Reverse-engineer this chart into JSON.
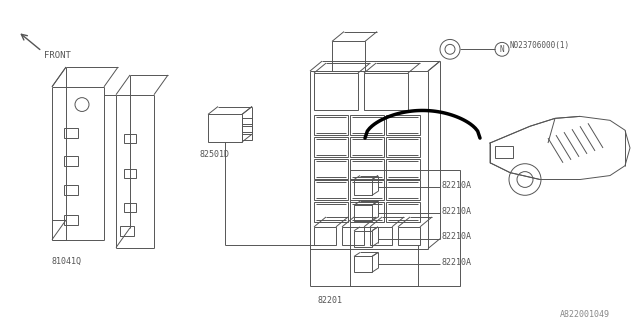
{
  "bg_color": "#ffffff",
  "line_color": "#555555",
  "line_width": 0.7,
  "part_id": "A822001049",
  "labels": {
    "front": "FRONT",
    "81041Q": "81041Q",
    "82501D": "82501D",
    "82201": "82201",
    "N02370600": "N023706000(1)",
    "82210A": "82210A"
  }
}
